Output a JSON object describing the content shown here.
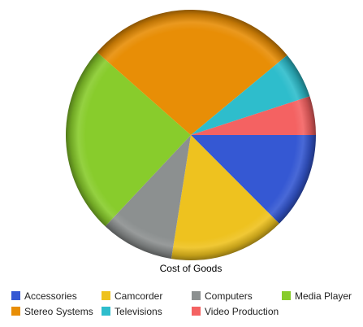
{
  "chart_data": {
    "type": "pie",
    "title": "",
    "xlabel": "Cost of Goods",
    "categories": [
      "Accessories",
      "Camcorder",
      "Computers",
      "Media Player",
      "Stereo Systems",
      "Televisions",
      "Video Production"
    ],
    "values": [
      12.5,
      15.0,
      9.5,
      24.5,
      27.5,
      6.0,
      5.0
    ],
    "colors": [
      "#3558d3",
      "#eec21f",
      "#8c9090",
      "#88cc2c",
      "#e88e06",
      "#2ebdcc",
      "#f46262"
    ],
    "slice_order": [
      "Accessories",
      "Camcorder",
      "Computers",
      "Media Player",
      "Stereo Systems",
      "Televisions",
      "Video Production"
    ],
    "legend_position": "bottom",
    "grid": false
  }
}
